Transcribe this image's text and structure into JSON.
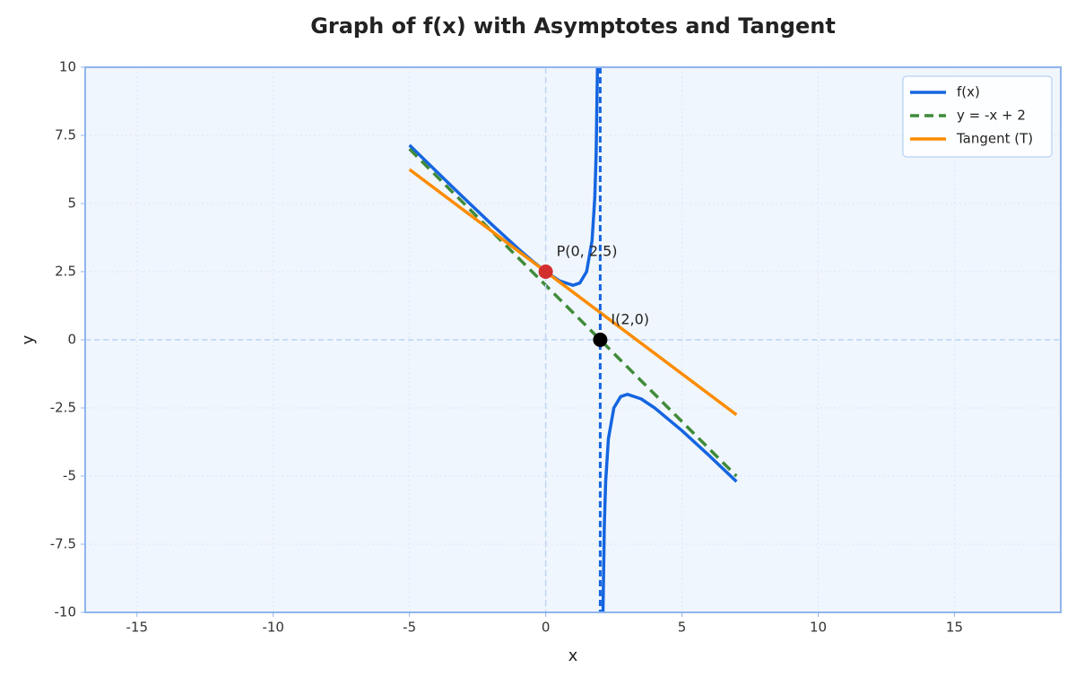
{
  "chart_data": {
    "type": "line",
    "title": "Graph of f(x) with Asymptotes and Tangent",
    "x_label": "x",
    "y_label": "y",
    "xlim": [
      -16.9,
      18.9
    ],
    "ylim": [
      -10,
      10
    ],
    "xticks": [
      -15,
      -10,
      -5,
      0,
      5,
      10,
      15
    ],
    "yticks": [
      -10,
      -7.5,
      -5,
      -2.5,
      0,
      2.5,
      5,
      7.5,
      10
    ],
    "grid": true,
    "legend": "upper-right",
    "series": [
      {
        "name": "f(x)",
        "color": "#1565e0",
        "dash": false,
        "x": [
          -5,
          -4,
          -3,
          -2,
          -1,
          -0.5,
          0,
          0.5,
          1,
          1.25,
          1.5,
          1.7,
          1.8,
          1.85,
          1.9,
          2,
          2.1,
          2.15,
          2.2,
          2.3,
          2.5,
          2.75,
          3,
          3.5,
          4,
          5,
          6,
          7
        ],
        "values": [
          7.1429,
          6.1667,
          5.2,
          4.25,
          3.3333,
          2.9,
          2.5,
          2.1667,
          2,
          2.0833,
          2.5,
          3.6333,
          5.2,
          6.8167,
          10.1,
          null,
          -10.1,
          -6.8167,
          -5.2,
          -3.6333,
          -2.5,
          -2.0833,
          -2,
          -2.1667,
          -2.5,
          -3.3333,
          -4.25,
          -5.2
        ]
      },
      {
        "name": "y = -x + 2",
        "color": "#3f8a3a",
        "dash": true,
        "x": [
          -5,
          7
        ],
        "values": [
          7,
          -5
        ]
      },
      {
        "name": "Tangent (T)",
        "color": "#fb8c00",
        "dash": false,
        "x": [
          -5,
          7
        ],
        "values": [
          6.25,
          -2.75
        ]
      }
    ],
    "vlines": [
      {
        "x": 0,
        "color": "#bcd4f6",
        "dash": true,
        "width": 1.5
      },
      {
        "x": 2,
        "color": "#1565e0",
        "dash": true,
        "width": 3
      }
    ],
    "hlines": [
      {
        "y": 0,
        "color": "#bcd4f6",
        "dash": true,
        "width": 1.5
      }
    ],
    "points": [
      {
        "x": 0,
        "y": 2.5,
        "label": "P(0, 2.5)",
        "color": "#d32f2f"
      },
      {
        "x": 2,
        "y": 0,
        "label": "I(2,0)",
        "color": "#000000"
      }
    ]
  }
}
